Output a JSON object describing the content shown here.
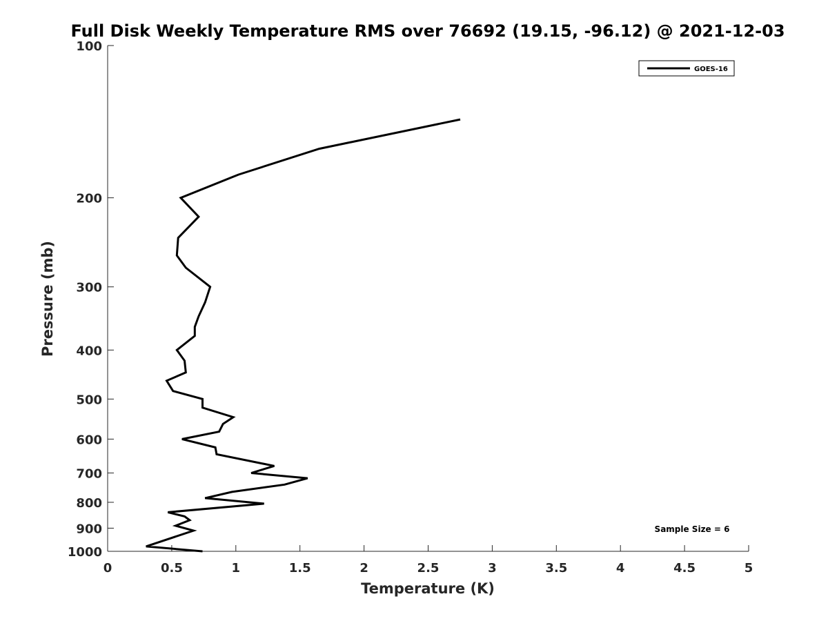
{
  "chart_data": {
    "type": "line",
    "title": "Full Disk Weekly Temperature RMS over 76692 (19.15, -96.12) @ 2021-12-03",
    "xlabel": "Temperature (K)",
    "ylabel": "Pressure (mb)",
    "xlim": [
      0,
      5
    ],
    "ylim": [
      100,
      1000
    ],
    "y_scale": "log",
    "y_reversed": true,
    "xticks": [
      0,
      0.5,
      1,
      1.5,
      2,
      2.5,
      3,
      3.5,
      4,
      4.5,
      5
    ],
    "xtick_labels": [
      "0",
      "0.5",
      "1",
      "1.5",
      "2",
      "2.5",
      "3",
      "3.5",
      "4",
      "4.5",
      "5"
    ],
    "yticks": [
      100,
      200,
      300,
      400,
      500,
      600,
      700,
      800,
      900,
      1000
    ],
    "ytick_labels": [
      "100",
      "200",
      "300",
      "400",
      "500",
      "600",
      "700",
      "800",
      "900",
      "1000"
    ],
    "grid": false,
    "legend_position": "top-right",
    "annotation": "Sample Size = 6",
    "series": [
      {
        "name": "GOES-16",
        "color": "#000000",
        "points": [
          [
            2.75,
            140
          ],
          [
            1.65,
            160
          ],
          [
            1.02,
            180
          ],
          [
            0.57,
            200
          ],
          [
            0.71,
            218
          ],
          [
            0.55,
            240
          ],
          [
            0.54,
            260
          ],
          [
            0.61,
            275
          ],
          [
            0.8,
            300
          ],
          [
            0.76,
            322
          ],
          [
            0.71,
            343
          ],
          [
            0.68,
            360
          ],
          [
            0.68,
            375
          ],
          [
            0.54,
            400
          ],
          [
            0.6,
            420
          ],
          [
            0.61,
            443
          ],
          [
            0.46,
            460
          ],
          [
            0.51,
            482
          ],
          [
            0.74,
            500
          ],
          [
            0.74,
            520
          ],
          [
            0.98,
            543
          ],
          [
            0.9,
            560
          ],
          [
            0.87,
            580
          ],
          [
            0.58,
            600
          ],
          [
            0.84,
            623
          ],
          [
            0.85,
            643
          ],
          [
            1.3,
            678
          ],
          [
            1.12,
            700
          ],
          [
            1.56,
            717
          ],
          [
            1.38,
            738
          ],
          [
            0.97,
            763
          ],
          [
            0.76,
            785
          ],
          [
            1.22,
            805
          ],
          [
            0.47,
            837
          ],
          [
            0.6,
            853
          ],
          [
            0.64,
            868
          ],
          [
            0.53,
            890
          ],
          [
            0.67,
            910
          ],
          [
            0.3,
            978
          ],
          [
            0.74,
            1000
          ]
        ]
      }
    ]
  }
}
